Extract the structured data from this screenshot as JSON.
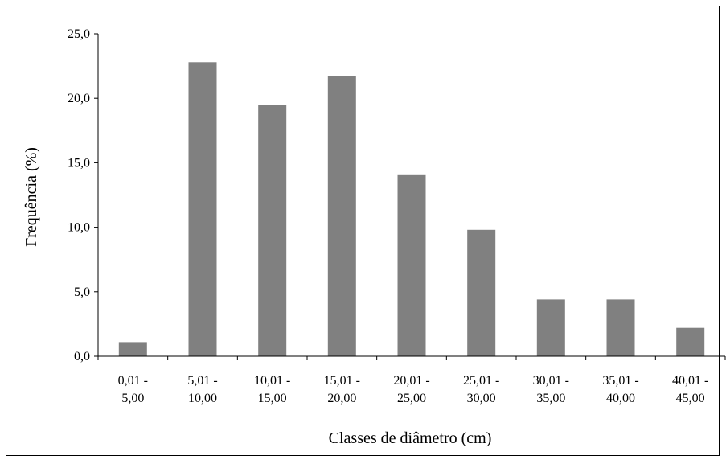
{
  "chart_data": {
    "type": "bar",
    "title": "",
    "xlabel": "Classes de diâmetro (cm)",
    "ylabel": "Frequência (%)",
    "categories": [
      [
        "0,01 -",
        "5,00"
      ],
      [
        "5,01 -",
        "10,00"
      ],
      [
        "10,01 -",
        "15,00"
      ],
      [
        "15,01 -",
        "20,00"
      ],
      [
        "20,01 -",
        "25,00"
      ],
      [
        "25,01 -",
        "30,00"
      ],
      [
        "30,01 -",
        "35,00"
      ],
      [
        "35,01 -",
        "40,00"
      ],
      [
        "40,01 -",
        "45,00"
      ]
    ],
    "values": [
      1.1,
      22.8,
      19.5,
      21.7,
      14.1,
      9.8,
      4.4,
      4.4,
      2.2
    ],
    "ylim": [
      0,
      25
    ],
    "yticks": [
      "0,0",
      "5,0",
      "10,0",
      "15,0",
      "20,0",
      "25,0"
    ],
    "grid": false,
    "bar_color": "#808080"
  }
}
